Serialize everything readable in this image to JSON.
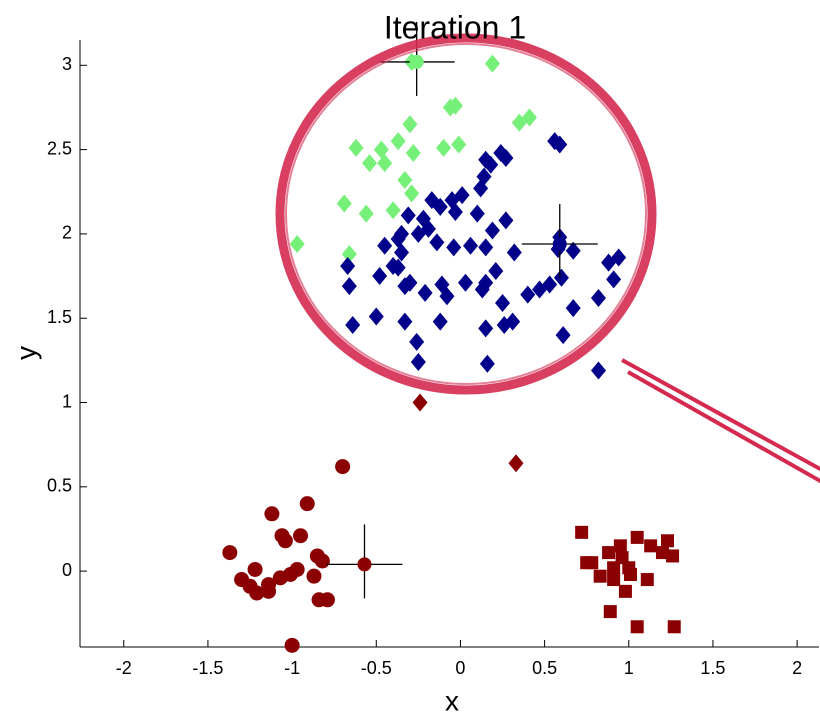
{
  "chart_data": {
    "type": "scatter",
    "title": "Iteration 1",
    "x_label": "x",
    "y_label": "y",
    "xlim": [
      -2.26,
      2.13
    ],
    "ylim": [
      -0.45,
      3.15
    ],
    "xticks": [
      -2,
      -1.5,
      -1,
      -0.5,
      0,
      0.5,
      1,
      1.5,
      2
    ],
    "yticks": [
      0,
      0.5,
      1,
      1.5,
      2,
      2.5,
      3
    ],
    "series": [
      {
        "color": "#77f07a",
        "marker": "diamond",
        "x": [
          -0.29,
          0.19,
          -0.06,
          -0.03,
          -0.3,
          0.41,
          0.35,
          -0.62,
          -0.47,
          -0.37,
          -0.28,
          -0.1,
          -0.01,
          -0.54,
          -0.45,
          -0.33,
          -0.29,
          -0.69,
          -0.56,
          -0.4,
          -0.97,
          -0.66
        ],
        "values": [
          3.02,
          3.01,
          2.75,
          2.76,
          2.65,
          2.69,
          2.66,
          2.51,
          2.5,
          2.55,
          2.48,
          2.51,
          2.53,
          2.42,
          2.42,
          2.32,
          2.24,
          2.18,
          2.12,
          2.14,
          1.94,
          1.88
        ]
      },
      {
        "color": "#00008b",
        "marker": "diamond",
        "x": [
          0.15,
          0.24,
          0.27,
          0.18,
          0.56,
          0.59,
          0.14,
          0.12,
          0.1,
          0.01,
          -0.05,
          -0.03,
          -0.17,
          -0.12,
          -0.31,
          -0.25,
          -0.19,
          -0.22,
          -0.14,
          -0.04,
          0.06,
          0.19,
          0.27,
          0.32,
          -0.37,
          -0.45,
          -0.35,
          -0.35,
          -0.4,
          -0.48,
          -0.33,
          -0.37,
          -0.3,
          -0.21,
          -0.08,
          0.03,
          0.13,
          0.15,
          0.21,
          0.15,
          0.4,
          0.47,
          0.53,
          0.6,
          0.58,
          0.67,
          0.59,
          0.94,
          0.88,
          0.91,
          0.82,
          0.67,
          0.61,
          0.82,
          0.26,
          0.31,
          0.15,
          0.16,
          -0.12,
          -0.33,
          -0.5,
          -0.64,
          -0.66,
          -0.67,
          -0.26,
          -0.25,
          0.25,
          -0.11
        ],
        "values": [
          2.44,
          2.48,
          2.45,
          2.41,
          2.55,
          2.53,
          2.34,
          2.27,
          2.12,
          2.23,
          2.2,
          2.13,
          2.2,
          2.16,
          2.11,
          2.0,
          2.03,
          2.09,
          1.95,
          1.92,
          1.93,
          2.02,
          2.08,
          1.89,
          1.97,
          1.93,
          2.0,
          1.89,
          1.81,
          1.75,
          1.69,
          1.8,
          1.71,
          1.65,
          1.63,
          1.71,
          1.67,
          1.71,
          1.78,
          1.92,
          1.64,
          1.67,
          1.7,
          1.74,
          1.91,
          1.9,
          1.98,
          1.86,
          1.83,
          1.73,
          1.62,
          1.56,
          1.4,
          1.19,
          1.46,
          1.48,
          1.44,
          1.23,
          1.48,
          1.48,
          1.51,
          1.46,
          1.69,
          1.81,
          1.36,
          1.24,
          1.59,
          1.7
        ]
      },
      {
        "color": "#8b0000",
        "marker": "diamond",
        "x": [
          -0.24,
          0.33
        ],
        "values": [
          1.0,
          0.64
        ]
      },
      {
        "color": "#8b0000",
        "marker": "circle",
        "x": [
          -0.7,
          -0.91,
          -1.12,
          -1.06,
          -1.04,
          -0.95,
          -1.37,
          -1.22,
          -0.85,
          -0.82,
          -1.25,
          -1.21,
          -1.14,
          -1.07,
          -1.01,
          -0.97,
          -0.87,
          -1.14,
          -0.84,
          -0.79,
          -1.0,
          -1.3
        ],
        "values": [
          0.62,
          0.4,
          0.34,
          0.21,
          0.18,
          0.21,
          0.11,
          0.01,
          0.09,
          0.06,
          -0.09,
          -0.13,
          -0.08,
          -0.04,
          -0.02,
          0.01,
          -0.03,
          -0.12,
          -0.17,
          -0.17,
          -0.44,
          -0.05
        ]
      },
      {
        "color": "#8b0000",
        "marker": "square",
        "x": [
          0.72,
          0.88,
          1.05,
          0.95,
          1.23,
          1.13,
          1.2,
          1.26,
          0.78,
          0.83,
          0.91,
          0.96,
          1.0,
          1.01,
          0.91,
          1.11,
          0.98,
          0.89,
          1.05,
          1.27,
          0.75
        ],
        "values": [
          0.23,
          0.11,
          0.2,
          0.15,
          0.18,
          0.15,
          0.11,
          0.09,
          0.05,
          -0.03,
          0.02,
          0.08,
          0.02,
          -0.02,
          -0.05,
          -0.05,
          -0.12,
          -0.24,
          -0.33,
          -0.33,
          0.05
        ]
      },
      {
        "color": "#000000",
        "marker": "cross",
        "point_colors": [
          "#77f07a",
          "#00008b",
          "#8b0000"
        ],
        "x": [
          -0.26,
          0.59,
          -0.57
        ],
        "values": [
          3.02,
          1.94,
          0.04
        ]
      }
    ]
  }
}
